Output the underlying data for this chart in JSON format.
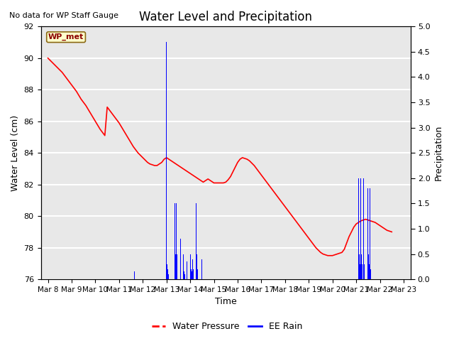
{
  "title": "Water Level and Precipitation",
  "top_left_text": "No data for WP Staff Gauge",
  "xlabel": "Time",
  "ylabel_left": "Water Level (cm)",
  "ylabel_right": "Precipitation",
  "annotation_label": "WP_met",
  "legend_items": [
    "Water Pressure",
    "EE Rain"
  ],
  "ylim_left": [
    76,
    92
  ],
  "ylim_right": [
    0.0,
    5.0
  ],
  "yticks_left": [
    76,
    78,
    80,
    82,
    84,
    86,
    88,
    90,
    92
  ],
  "yticks_right": [
    0.0,
    0.5,
    1.0,
    1.5,
    2.0,
    2.5,
    3.0,
    3.5,
    4.0,
    4.5,
    5.0
  ],
  "xtick_labels": [
    "Mar 8",
    "Mar 9",
    "Mar 10",
    "Mar 11",
    "Mar 12",
    "Mar 13",
    "Mar 14",
    "Mar 15",
    "Mar 16",
    "Mar 17",
    "Mar 18",
    "Mar 19",
    "Mar 20",
    "Mar 21",
    "Mar 22",
    "Mar 23"
  ],
  "background_color": "#e8e8e8",
  "grid_color": "white",
  "wp_x": [
    0.0,
    0.1,
    0.2,
    0.3,
    0.4,
    0.5,
    0.6,
    0.7,
    0.8,
    0.9,
    1.0,
    1.1,
    1.2,
    1.3,
    1.4,
    1.5,
    1.6,
    1.7,
    1.8,
    1.9,
    2.0,
    2.1,
    2.2,
    2.3,
    2.4,
    2.5,
    2.6,
    2.7,
    2.8,
    2.9,
    3.0,
    3.1,
    3.2,
    3.3,
    3.4,
    3.5,
    3.6,
    3.7,
    3.8,
    3.9,
    4.0,
    4.1,
    4.2,
    4.3,
    4.4,
    4.5,
    4.55,
    4.6,
    4.65,
    4.7,
    4.75,
    4.8,
    4.85,
    4.9,
    4.95,
    5.0,
    5.05,
    5.1,
    5.15,
    5.2,
    5.25,
    5.3,
    5.35,
    5.4,
    5.45,
    5.5,
    5.55,
    5.6,
    5.65,
    5.7,
    5.75,
    5.8,
    5.85,
    5.9,
    5.95,
    6.0,
    6.05,
    6.1,
    6.15,
    6.2,
    6.25,
    6.3,
    6.35,
    6.4,
    6.45,
    6.5,
    6.55,
    6.6,
    6.65,
    6.7,
    6.75,
    6.8,
    6.85,
    6.9,
    6.95,
    7.0,
    7.1,
    7.2,
    7.3,
    7.4,
    7.5,
    7.6,
    7.7,
    7.8,
    7.9,
    8.0,
    8.1,
    8.2,
    8.3,
    8.4,
    8.5,
    8.6,
    8.7,
    8.8,
    8.9,
    9.0,
    9.1,
    9.2,
    9.3,
    9.4,
    9.5,
    9.6,
    9.7,
    9.8,
    9.9,
    10.0,
    10.1,
    10.2,
    10.3,
    10.4,
    10.5,
    10.6,
    10.7,
    10.8,
    10.9,
    11.0,
    11.1,
    11.2,
    11.3,
    11.4,
    11.5,
    11.6,
    11.7,
    11.8,
    11.9,
    12.0,
    12.1,
    12.2,
    12.3,
    12.4,
    12.5,
    12.6,
    12.7,
    12.8,
    12.9,
    13.0,
    13.1,
    13.2,
    13.3,
    13.4,
    13.5,
    13.6,
    13.7,
    13.8,
    13.9,
    14.0,
    14.1,
    14.2,
    14.3,
    14.4,
    14.5
  ],
  "wp_y": [
    90.0,
    89.85,
    89.7,
    89.55,
    89.4,
    89.25,
    89.1,
    88.9,
    88.7,
    88.5,
    88.3,
    88.1,
    87.9,
    87.65,
    87.4,
    87.2,
    87.0,
    86.75,
    86.5,
    86.25,
    86.0,
    85.75,
    85.5,
    85.3,
    85.1,
    86.9,
    86.7,
    86.5,
    86.3,
    86.1,
    85.9,
    85.65,
    85.4,
    85.15,
    84.9,
    84.65,
    84.4,
    84.2,
    84.0,
    83.85,
    83.7,
    83.55,
    83.4,
    83.3,
    83.25,
    83.2,
    83.2,
    83.2,
    83.25,
    83.3,
    83.35,
    83.4,
    83.5,
    83.6,
    83.65,
    83.7,
    83.65,
    83.6,
    83.55,
    83.5,
    83.45,
    83.4,
    83.35,
    83.3,
    83.25,
    83.2,
    83.15,
    83.1,
    83.05,
    83.0,
    82.95,
    82.9,
    82.85,
    82.8,
    82.75,
    82.7,
    82.65,
    82.6,
    82.55,
    82.5,
    82.45,
    82.4,
    82.35,
    82.3,
    82.25,
    82.2,
    82.15,
    82.2,
    82.25,
    82.3,
    82.35,
    82.3,
    82.25,
    82.2,
    82.15,
    82.1,
    82.1,
    82.1,
    82.1,
    82.1,
    82.15,
    82.3,
    82.5,
    82.8,
    83.1,
    83.4,
    83.6,
    83.7,
    83.65,
    83.6,
    83.5,
    83.35,
    83.2,
    83.0,
    82.8,
    82.6,
    82.4,
    82.2,
    82.0,
    81.8,
    81.6,
    81.4,
    81.2,
    81.0,
    80.8,
    80.6,
    80.4,
    80.2,
    80.0,
    79.8,
    79.6,
    79.4,
    79.2,
    79.0,
    78.8,
    78.6,
    78.4,
    78.2,
    78.0,
    77.85,
    77.7,
    77.6,
    77.55,
    77.5,
    77.5,
    77.5,
    77.55,
    77.6,
    77.65,
    77.7,
    77.9,
    78.3,
    78.7,
    79.0,
    79.3,
    79.5,
    79.6,
    79.7,
    79.75,
    79.8,
    79.75,
    79.7,
    79.65,
    79.6,
    79.5,
    79.4,
    79.3,
    79.2,
    79.1,
    79.05,
    79.0
  ],
  "rain_x": [
    3.65,
    5.0,
    5.02,
    5.04,
    5.06,
    5.08,
    5.35,
    5.38,
    5.42,
    5.45,
    5.58,
    5.6,
    5.7,
    5.72,
    5.74,
    5.76,
    5.85,
    5.87,
    6.0,
    6.02,
    6.04,
    6.06,
    6.1,
    6.13,
    6.25,
    6.27,
    6.3,
    6.48,
    6.5,
    13.1,
    13.13,
    13.16,
    13.2,
    13.23,
    13.26,
    13.3,
    13.33,
    13.5,
    13.52,
    13.55,
    13.58,
    13.62
  ],
  "rain_y": [
    0.15,
    4.7,
    0.3,
    0.2,
    0.15,
    0.1,
    1.5,
    0.5,
    1.5,
    0.5,
    0.8,
    0.3,
    0.5,
    0.3,
    0.15,
    0.1,
    0.35,
    0.15,
    0.5,
    0.3,
    0.2,
    0.15,
    0.4,
    0.2,
    1.5,
    0.5,
    0.2,
    0.4,
    0.2,
    2.0,
    0.5,
    0.3,
    2.0,
    0.5,
    0.3,
    2.0,
    0.3,
    1.8,
    0.5,
    0.3,
    1.8,
    0.2
  ]
}
